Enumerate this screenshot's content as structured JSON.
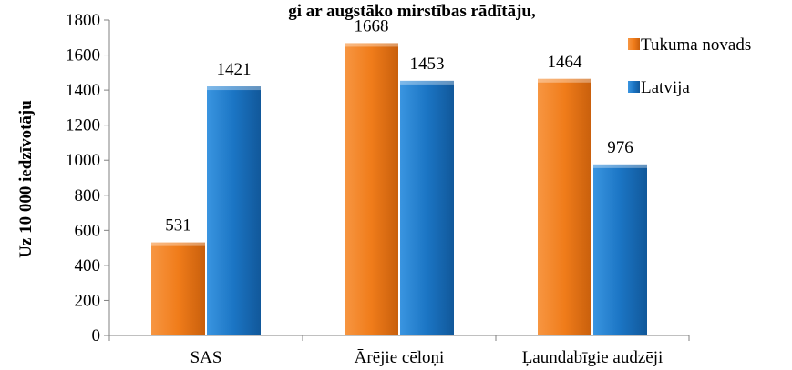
{
  "chart_data": {
    "type": "bar",
    "title": "gi ar augstāko mirstības rādītāju,",
    "ylabel": "Uz 10 000 iedzīvotāju",
    "xlabel": "",
    "ylim": [
      0,
      1800
    ],
    "y_ticks": [
      0,
      200,
      400,
      600,
      800,
      1000,
      1200,
      1400,
      1600,
      1800
    ],
    "categories": [
      "SAS",
      "Ārējie cēloņi",
      "Ļaundabīgie audzēji"
    ],
    "series": [
      {
        "name": "Tukuma novads",
        "values": [
          531,
          1668,
          1464
        ],
        "color": "#f07c1a"
      },
      {
        "name": "Latvija",
        "values": [
          1421,
          1453,
          976
        ],
        "color": "#1b75c4"
      }
    ],
    "legend_position": "top-right",
    "grid": false
  }
}
